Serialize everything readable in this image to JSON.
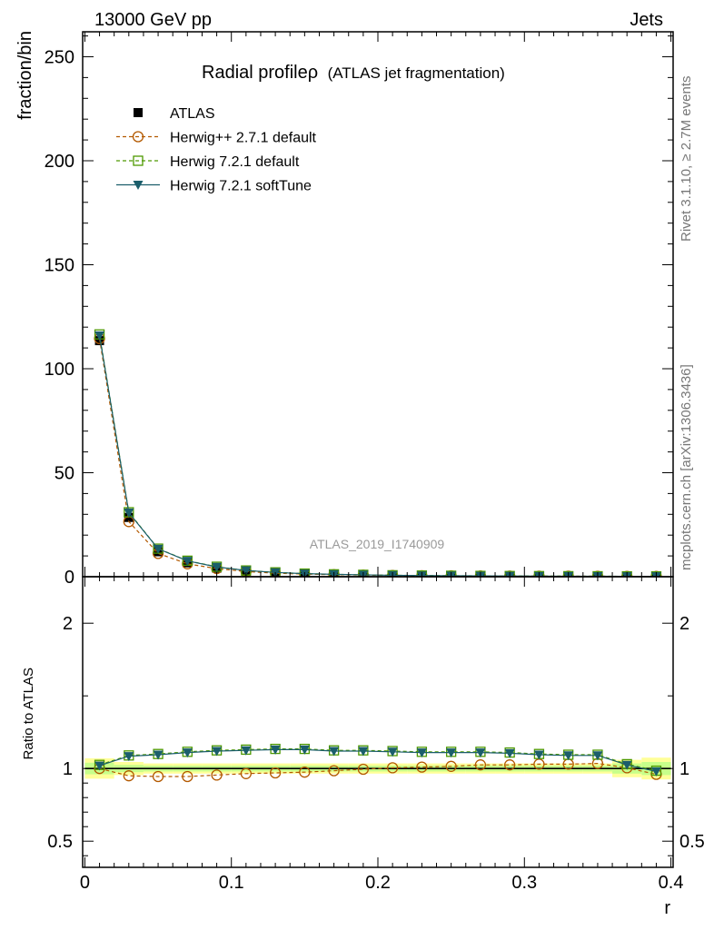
{
  "header": {
    "left": "13000 GeV pp",
    "right": "Jets"
  },
  "side_labels": {
    "rivet": "Rivet 3.1.10, ≥ 2.7M events",
    "mcplots": "mcplots.cern.ch [arXiv:1306.3436]"
  },
  "analysis_id": "ATLAS_2019_I1740909",
  "chart_data": {
    "type": "line",
    "title": "Radial profileρ",
    "subtitle": "(ATLAS jet fragmentation)",
    "xlabel": "r",
    "ylabel_top": "fraction/bin",
    "ylabel_bottom": "Ratio to ATLAS",
    "xlim": [
      -0.0015,
      0.4015
    ],
    "ylim_top": [
      0,
      262
    ],
    "ylim_bottom": [
      0.32,
      2.32
    ],
    "x_ticks": [
      0,
      0.1,
      0.2,
      0.3,
      0.4
    ],
    "x_tick_labels": [
      "0",
      "0.1",
      "0.2",
      "0.3",
      "0.4"
    ],
    "y_ticks_top": [
      0,
      50,
      100,
      150,
      200,
      250
    ],
    "y_tick_labels_top": [
      "0",
      "50",
      "100",
      "150",
      "200",
      "250"
    ],
    "y_ticks_bottom": [
      0.5,
      1,
      2
    ],
    "y_tick_labels_bottom": [
      "0.5",
      "1",
      "2"
    ],
    "x": [
      0.01,
      0.03,
      0.05,
      0.07,
      0.09,
      0.11,
      0.13,
      0.15,
      0.17,
      0.19,
      0.21,
      0.23,
      0.25,
      0.27,
      0.29,
      0.31,
      0.33,
      0.35,
      0.37,
      0.39
    ],
    "legend": {
      "placement": "top-left",
      "entries": [
        "ATLAS",
        "Herwig++ 2.7.1 default",
        "Herwig 7.2.1 default",
        "Herwig 7.2.1 softTune"
      ]
    },
    "series": [
      {
        "name": "ATLAS",
        "color": "#000000",
        "marker": "filled-square",
        "values": [
          113.5,
          28.5,
          12.0,
          6.7,
          4.1,
          2.6,
          1.8,
          1.3,
          1.0,
          0.8,
          0.6,
          0.5,
          0.42,
          0.35,
          0.3,
          0.26,
          0.23,
          0.2,
          0.18,
          0.16
        ]
      },
      {
        "name": "Herwig++ 2.7.1 default",
        "color": "#b35900",
        "marker": "open-circle",
        "dashed": true,
        "values": [
          114.5,
          26.5,
          11.2,
          6.2,
          3.9,
          2.5,
          1.7,
          1.25,
          0.97,
          0.78,
          0.6,
          0.5,
          0.42,
          0.36,
          0.31,
          0.27,
          0.24,
          0.21,
          0.18,
          0.15
        ],
        "ratio": [
          1.0,
          0.95,
          0.945,
          0.945,
          0.955,
          0.965,
          0.97,
          0.975,
          0.985,
          0.995,
          1.005,
          1.01,
          1.015,
          1.025,
          1.025,
          1.03,
          1.03,
          1.035,
          1.005,
          0.96
        ]
      },
      {
        "name": "Herwig 7.2.1 default",
        "color": "#4d9900",
        "marker": "open-square",
        "dashed": true,
        "values": [
          116.5,
          31.0,
          13.5,
          7.7,
          4.8,
          3.0,
          2.1,
          1.5,
          1.15,
          0.92,
          0.7,
          0.58,
          0.48,
          0.4,
          0.34,
          0.29,
          0.25,
          0.22,
          0.19,
          0.16
        ],
        "ratio": [
          1.025,
          1.09,
          1.1,
          1.115,
          1.125,
          1.13,
          1.135,
          1.135,
          1.125,
          1.125,
          1.12,
          1.115,
          1.115,
          1.115,
          1.11,
          1.1,
          1.095,
          1.095,
          1.03,
          0.985
        ]
      },
      {
        "name": "Herwig 7.2.1 softTune",
        "color": "#1b5e6b",
        "marker": "filled-triangle-down",
        "dashed": false,
        "values": [
          116.0,
          30.8,
          13.4,
          7.6,
          4.7,
          3.0,
          2.05,
          1.48,
          1.13,
          0.91,
          0.69,
          0.57,
          0.47,
          0.39,
          0.33,
          0.29,
          0.25,
          0.22,
          0.19,
          0.16
        ],
        "ratio": [
          1.02,
          1.085,
          1.095,
          1.11,
          1.12,
          1.125,
          1.13,
          1.13,
          1.12,
          1.12,
          1.115,
          1.11,
          1.11,
          1.11,
          1.105,
          1.095,
          1.09,
          1.09,
          1.025,
          0.98
        ]
      }
    ],
    "ratio_band": {
      "inner_color": "#c7ff8a",
      "outer_color": "#ffff99",
      "inner": [
        0.04,
        0.025,
        0.02,
        0.02,
        0.02,
        0.02,
        0.02,
        0.02,
        0.02,
        0.02,
        0.02,
        0.02,
        0.02,
        0.02,
        0.02,
        0.02,
        0.02,
        0.02,
        0.035,
        0.045
      ],
      "outer": [
        0.07,
        0.045,
        0.035,
        0.035,
        0.035,
        0.035,
        0.035,
        0.035,
        0.035,
        0.035,
        0.035,
        0.035,
        0.035,
        0.035,
        0.035,
        0.035,
        0.035,
        0.035,
        0.06,
        0.075
      ]
    }
  }
}
